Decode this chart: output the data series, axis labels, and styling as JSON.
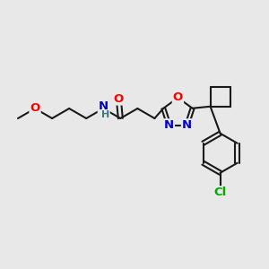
{
  "bg_color": "#e8e8e8",
  "bond_color": "#1a1a1a",
  "atom_colors": {
    "O": "#ff0000",
    "N": "#0000cc",
    "Cl": "#00aa00",
    "C": "#1a1a1a",
    "H": "#3a7a7a"
  },
  "figsize": [
    3.0,
    3.0
  ],
  "dpi": 100
}
